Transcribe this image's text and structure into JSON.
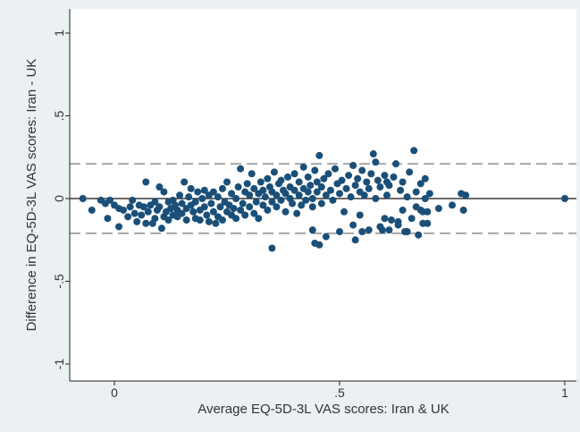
{
  "chart_data": {
    "type": "scatter",
    "title": "",
    "xlabel": "Average EQ-5D-3L VAS scores: Iran & UK",
    "ylabel": "Difference in EQ-5D-3L VAS scores: Iran - UK",
    "xlim": [
      -0.1,
      1.02
    ],
    "ylim": [
      -1.05,
      1.05
    ],
    "x_ticks": [
      0,
      0.5,
      1
    ],
    "x_tick_labels": [
      "0",
      ".5",
      "1"
    ],
    "y_ticks": [
      -1,
      -0.5,
      0,
      0.5,
      1
    ],
    "y_tick_labels": [
      "-1",
      "-.5",
      "0",
      ".5",
      "1"
    ],
    "grid": false,
    "legend": "none",
    "reference_lines": [
      {
        "y": 0,
        "style": "solid"
      },
      {
        "y": 0.21,
        "style": "dashed"
      },
      {
        "y": -0.21,
        "style": "dashed"
      }
    ],
    "series": [
      {
        "color": "#1a4f78",
        "points": [
          [
            -0.07,
            0.0
          ],
          [
            -0.05,
            -0.07
          ],
          [
            -0.03,
            -0.01
          ],
          [
            -0.02,
            -0.03
          ],
          [
            -0.015,
            -0.12
          ],
          [
            -0.01,
            -0.01
          ],
          [
            0.0,
            -0.04
          ],
          [
            0.01,
            -0.06
          ],
          [
            0.01,
            -0.17
          ],
          [
            0.02,
            -0.07
          ],
          [
            0.03,
            -0.11
          ],
          [
            0.035,
            -0.05
          ],
          [
            0.04,
            -0.01
          ],
          [
            0.045,
            -0.09
          ],
          [
            0.05,
            -0.14
          ],
          [
            0.055,
            -0.04
          ],
          [
            0.06,
            -0.1
          ],
          [
            0.065,
            -0.05
          ],
          [
            0.07,
            0.1
          ],
          [
            0.07,
            -0.15
          ],
          [
            0.075,
            -0.08
          ],
          [
            0.08,
            -0.04
          ],
          [
            0.085,
            -0.15
          ],
          [
            0.09,
            -0.12
          ],
          [
            0.09,
            -0.02
          ],
          [
            0.095,
            -0.07
          ],
          [
            0.1,
            -0.05
          ],
          [
            0.1,
            0.07
          ],
          [
            0.105,
            -0.18
          ],
          [
            0.11,
            0.04
          ],
          [
            0.11,
            -0.11
          ],
          [
            0.115,
            -0.08
          ],
          [
            0.12,
            -0.13
          ],
          [
            0.12,
            -0.02
          ],
          [
            0.125,
            -0.06
          ],
          [
            0.13,
            -0.01
          ],
          [
            0.13,
            -0.1
          ],
          [
            0.135,
            -0.04
          ],
          [
            0.14,
            -0.07
          ],
          [
            0.14,
            -0.11
          ],
          [
            0.145,
            0.02
          ],
          [
            0.15,
            -0.03
          ],
          [
            0.15,
            -0.09
          ],
          [
            0.155,
            0.1
          ],
          [
            0.16,
            -0.13
          ],
          [
            0.16,
            -0.06
          ],
          [
            0.165,
            0.01
          ],
          [
            0.17,
            -0.04
          ],
          [
            0.17,
            0.06
          ],
          [
            0.175,
            -0.08
          ],
          [
            0.18,
            -0.12
          ],
          [
            0.18,
            -0.02
          ],
          [
            0.185,
            0.04
          ],
          [
            0.19,
            -0.07
          ],
          [
            0.19,
            -0.13
          ],
          [
            0.195,
            0.0
          ],
          [
            0.2,
            -0.05
          ],
          [
            0.2,
            0.05
          ],
          [
            0.205,
            -0.1
          ],
          [
            0.21,
            0.02
          ],
          [
            0.21,
            -0.14
          ],
          [
            0.215,
            -0.03
          ],
          [
            0.22,
            0.04
          ],
          [
            0.22,
            -0.08
          ],
          [
            0.225,
            -0.15
          ],
          [
            0.23,
            -0.11
          ],
          [
            0.23,
            0.01
          ],
          [
            0.235,
            -0.05
          ],
          [
            0.24,
            -0.13
          ],
          [
            0.24,
            0.06
          ],
          [
            0.245,
            -0.02
          ],
          [
            0.25,
            -0.08
          ],
          [
            0.25,
            0.1
          ],
          [
            0.255,
            -0.04
          ],
          [
            0.26,
            -0.1
          ],
          [
            0.26,
            0.03
          ],
          [
            0.265,
            -0.06
          ],
          [
            0.27,
            0.0
          ],
          [
            0.27,
            -0.12
          ],
          [
            0.275,
            0.07
          ],
          [
            0.28,
            -0.07
          ],
          [
            0.28,
            0.18
          ],
          [
            0.285,
            -0.03
          ],
          [
            0.29,
            0.04
          ],
          [
            0.29,
            -0.1
          ],
          [
            0.295,
            0.09
          ],
          [
            0.3,
            -0.05
          ],
          [
            0.3,
            0.02
          ],
          [
            0.305,
            0.15
          ],
          [
            0.31,
            -0.09
          ],
          [
            0.31,
            0.06
          ],
          [
            0.315,
            -0.02
          ],
          [
            0.32,
            0.03
          ],
          [
            0.32,
            -0.12
          ],
          [
            0.325,
            0.1
          ],
          [
            0.33,
            -0.04
          ],
          [
            0.33,
            0.05
          ],
          [
            0.335,
            0.01
          ],
          [
            0.34,
            -0.07
          ],
          [
            0.34,
            0.12
          ],
          [
            0.345,
            0.07
          ],
          [
            0.35,
            -0.02
          ],
          [
            0.35,
            0.04
          ],
          [
            0.355,
            0.16
          ],
          [
            0.36,
            -0.05
          ],
          [
            0.36,
            0.02
          ],
          [
            0.365,
            0.09
          ],
          [
            0.37,
            -0.01
          ],
          [
            0.37,
            0.11
          ],
          [
            0.375,
            0.05
          ],
          [
            0.38,
            -0.08
          ],
          [
            0.38,
            0.03
          ],
          [
            0.385,
            0.13
          ],
          [
            0.39,
            0.0
          ],
          [
            0.39,
            0.07
          ],
          [
            0.395,
            -0.03
          ],
          [
            0.4,
            0.05
          ],
          [
            0.4,
            0.15
          ],
          [
            0.405,
            -0.09
          ],
          [
            0.41,
            0.02
          ],
          [
            0.41,
            0.1
          ],
          [
            0.415,
            -0.04
          ],
          [
            0.42,
            0.06
          ],
          [
            0.42,
            0.19
          ],
          [
            0.425,
            -0.01
          ],
          [
            0.43,
            0.04
          ],
          [
            0.43,
            0.13
          ],
          [
            0.435,
            0.08
          ],
          [
            0.44,
            -0.05
          ],
          [
            0.44,
            0.0
          ],
          [
            0.445,
            0.17
          ],
          [
            0.45,
            0.1
          ],
          [
            0.45,
            0.04
          ],
          [
            0.455,
            0.26
          ],
          [
            0.46,
            0.07
          ],
          [
            0.46,
            -0.03
          ],
          [
            0.465,
            0.12
          ],
          [
            0.47,
            0.02
          ],
          [
            0.475,
            0.15
          ],
          [
            0.48,
            0.05
          ],
          [
            0.485,
            -0.01
          ],
          [
            0.49,
            0.18
          ],
          [
            0.495,
            0.09
          ],
          [
            0.5,
            0.03
          ],
          [
            0.505,
            0.11
          ],
          [
            0.51,
            -0.08
          ],
          [
            0.515,
            0.06
          ],
          [
            0.52,
            0.14
          ],
          [
            0.525,
            0.01
          ],
          [
            0.53,
            0.2
          ],
          [
            0.535,
            0.08
          ],
          [
            0.54,
            0.12
          ],
          [
            0.545,
            0.04
          ],
          [
            0.55,
            0.17
          ],
          [
            0.555,
            0.02
          ],
          [
            0.56,
            0.1
          ],
          [
            0.565,
            0.06
          ],
          [
            0.57,
            0.15
          ],
          [
            0.575,
            0.27
          ],
          [
            0.58,
            0.0
          ],
          [
            0.585,
            0.11
          ],
          [
            0.59,
            0.07
          ],
          [
            0.595,
            -0.19
          ],
          [
            0.6,
            0.14
          ],
          [
            0.605,
            0.02
          ],
          [
            0.61,
            0.08
          ],
          [
            0.615,
            -0.13
          ],
          [
            0.62,
            0.13
          ],
          [
            0.625,
            0.21
          ],
          [
            0.63,
            -0.16
          ],
          [
            0.635,
            0.05
          ],
          [
            0.64,
            0.1
          ],
          [
            0.645,
            -0.2
          ],
          [
            0.65,
            0.01
          ],
          [
            0.655,
            0.16
          ],
          [
            0.66,
            -0.12
          ],
          [
            0.665,
            0.29
          ],
          [
            0.67,
            0.04
          ],
          [
            0.675,
            -0.22
          ],
          [
            0.68,
            0.09
          ],
          [
            0.685,
            -0.08
          ],
          [
            0.69,
            0.12
          ],
          [
            0.695,
            -0.15
          ],
          [
            0.7,
            0.03
          ],
          [
            0.35,
            -0.3
          ],
          [
            0.44,
            -0.19
          ],
          [
            0.445,
            -0.27
          ],
          [
            0.455,
            -0.28
          ],
          [
            0.47,
            -0.23
          ],
          [
            0.5,
            -0.2
          ],
          [
            0.53,
            -0.16
          ],
          [
            0.535,
            -0.25
          ],
          [
            0.545,
            -0.1
          ],
          [
            0.55,
            -0.2
          ],
          [
            0.565,
            -0.19
          ],
          [
            0.58,
            0.22
          ],
          [
            0.59,
            -0.17
          ],
          [
            0.6,
            -0.12
          ],
          [
            0.605,
            0.1
          ],
          [
            0.61,
            -0.19
          ],
          [
            0.63,
            -0.14
          ],
          [
            0.64,
            -0.07
          ],
          [
            0.65,
            -0.2
          ],
          [
            0.67,
            -0.05
          ],
          [
            0.68,
            -0.07
          ],
          [
            0.685,
            -0.15
          ],
          [
            0.69,
            0.0
          ],
          [
            0.695,
            -0.08
          ],
          [
            0.72,
            -0.06
          ],
          [
            0.75,
            -0.04
          ],
          [
            0.77,
            0.03
          ],
          [
            0.775,
            -0.07
          ],
          [
            0.78,
            0.02
          ],
          [
            1.0,
            0.0
          ]
        ]
      }
    ]
  }
}
